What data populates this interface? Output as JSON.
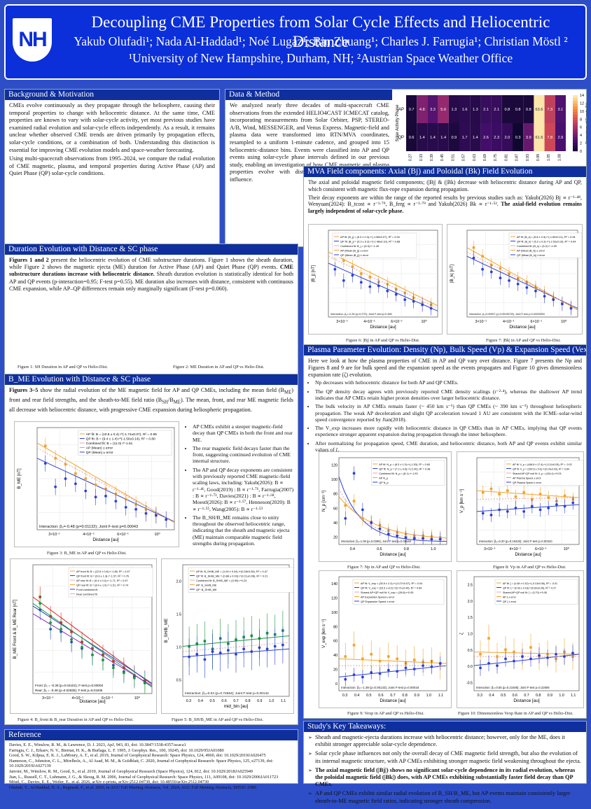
{
  "header": {
    "logo_text": "NH",
    "title": "Decoupling CME Properties from Solar Cycle Effects and Heliocentric Distance",
    "authors": "Yakub Olufadi¹; Nada Al-Haddad¹; Noé Lugaz¹; Bin Zhuang¹; Charles J. Farrugia¹; Christian Möstl ²",
    "affiliations": "¹University of New Hampshire, Durham, NH; ²Austrian Space Weather Office"
  },
  "background": {
    "title": "Background & Motivation",
    "p1": "CMEs evolve continuously as they propagate through the heliosphere, causing their temporal properties to change with heliocentric distance. At the same time, CME properties are known to vary with solar-cycle activity, yet most previous studies have examined radial evolution and solar-cycle effects independently. As a result, it remains unclear whether observed CME trends are driven primarily by propagation effects, solar-cycle conditions, or a combination of both. Understanding this distinction is essential for improving CME evolution models and space-weather forecasting.",
    "p2": "Using multi-spacecraft observations from 1995–2024, we compare the radial evolution of CME magnetic, plasma, and temporal properties during Active Phase (AP) and Quiet Phase (QP) solar-cycle conditions."
  },
  "method": {
    "title": "Data & Method",
    "text": "We analyzed nearly three decades of multi-spacecraft CME observations from the extended HELIO4CAST ICMECAT catalog, incorporating measurements from Solar Orbiter, PSP, STEREO-A/B, Wind, MESSENGER, and Venus Express. Magnetic-field and plasma data were transformed into RTN/MVA coordinates, resampled to a uniform 1-minute cadence, and grouped into 15 heliocentric-distance bins. Events were classified into AP and QP events using solar-cycle phase intervals defined in our previous study, enabling an investigation of how CME magnetic and plasma properties evolve with distance under different solar-cycle influence."
  },
  "heatmap": {
    "ylabel": "Solar Activity Phase",
    "xlabel": "Radial Distance [AU]",
    "cbar_label": "Percentage of Events (%)",
    "rows": [
      "AP",
      "QP"
    ],
    "cols": [
      "0.27",
      "0.33",
      "0.39",
      "0.45",
      "0.51",
      "0.57",
      "0.63",
      "0.69",
      "0.75",
      "0.81",
      "0.87",
      "0.93",
      "0.99",
      "1.05",
      "1.08"
    ],
    "ap": [
      "0.7",
      "4.8",
      "3.3",
      "5.6",
      "1.3",
      "1.6",
      "1.3",
      "2.1",
      "2.1",
      "0.8",
      "0.8",
      "0.8",
      "63.6",
      "7.3",
      "3.1"
    ],
    "qp": [
      "0.6",
      "1.4",
      "1.4",
      "1.4",
      "0.9",
      "1.7",
      "1.4",
      "2.6",
      "2.3",
      "2.0",
      "0.3",
      "3.9",
      "61.6",
      "7.8",
      "2.9"
    ],
    "cbar_ticks": [
      "14",
      "12",
      "10",
      "8",
      "6",
      "4",
      "2",
      "0"
    ]
  },
  "duration": {
    "title": "Duration Evolution with Distance & SC phase",
    "lead": "Figures 1 and 2",
    "t1": " present the heliocentric evolution of CME substructure durations. Figure 1 shows the sheath duration, while Figure 2 shows the magnetic ejecta (ME) duration for Active Phase (AP) and Quiet Phase (QP) events. ",
    "bold": "CME substructure durations increase with heliocentric distance.",
    "t2": " Sheath duration evolution is statistically identical for both AP and QP events (p-interaction=0.95; F-test p=0.55). ME duration also increases with distance, consistent with continuous CME expansion, while AP–QP differences remain only marginally significant (F-test p=0.060).",
    "cap1": "Figure 1: SH Duration in AP and QP vs Helio-Dist.",
    "cap2": "Figure 2: ME Duration in AP and QP vs Helio-Dist."
  },
  "bme": {
    "title": "B_ME Evolution with Distance & SC phase",
    "lead": "Figures 3–5",
    "t1": " show the radial evolution of the ME magnetic field for AP and QP CMEs, including the mean field (B",
    "sub1": "ME",
    "t2": ") front and rear field strengths, and the sheath-to-ME field ratio (B",
    "sub2": "SH",
    "t3": "/B",
    "sub3": "ME",
    "t4": "). The mean, front, and rear ME magnetic fields all decrease with heliocentric distance, with progressive CME expansion during heliospheric propagation.",
    "bullets": [
      "AP CMEs exhibit a steeper magnetic-field decay than QP CMEs in both the front and rear ME.",
      "The rear magnetic field decays faster than the front, suggesting continued evolution of CME internal structure.",
      "The AP and QP decay exponents are consistent with previously reported CME magnetic-field scaling laws, including: Yakub(2026): B ∝ r⁻¹·⁴⁶, Good(2019) : B ∝ r⁻¹·⁷⁶, Farrugia(2007) : B ∝ r⁻¹·⁷³, Davies(2021) : B ∝ r⁻¹·⁶⁸, Moestl(2026): B ∝ r⁻¹·⁵⁷, Henneson(2020): B ∝ r⁻¹·⁵⁵, Wang(2005): B ∝ r⁻¹·⁵³",
      "The B_SH/B_ME remains close to unity throughout the observed heliocentric range, indicating that the sheath and magnetic ejecta (ME) maintain comparable magnetic field strengths during propagation."
    ],
    "cap3": "Figure 3: B_ME in AP and QP vs Helio-Dist.",
    "cap4": "Figure 4: B_front & B_rear Duration in AP and QP vs Helio-Dist.",
    "cap5": "Figure 5: B_SH/B_ME in AP and QP vs Helio-Dist."
  },
  "mva": {
    "title": "MVA Field components: Axial (Bj) and Poloidal (Bk) Field Evolution",
    "t1": "The axial and poloidal magnetic field components; (|Bj| & (|Bk) decrease with heliocentric distance during AP and QP, which consistent with magnetic flux-rope expansion during propagation.",
    "t2": "Their decay exponents are within the range of the reported results by previous studies such as: Yakub(2026) Bj ∝ r⁻¹·⁴⁸, Wenyuan(2024): B_tcost ∝ r⁻¹·⁷⁹, B_ferg ∝ r⁻¹·⁷⁹ and Yakub(2026) Bk ∝ r⁻¹·⁵². ",
    "bold": "The axial-field evolution remains largely independent of solar-cycle phase.",
    "cap6": "Figure 6: |Bj| in AP and QP vs Helio-Dist.",
    "cap7": "Figure 7: |Bk| in AP and QP vs Helio-Dist."
  },
  "plasma": {
    "title": "Plasma Parameter Evolution: Density (Np), Bulk Speed (Vp) & Expansion Speed (Vexp)",
    "intro": "Here we look at how the plasma properties of CME in AP and QP vary over distance. Figure 7 presents the Np and Figures 8 and 9 are for bulk speed and the expansion speed as the events propagates and Figure 10 gives dimensionless expansion rate (ζ) evolution.",
    "bullets": [
      "Np decreases with heliocentric distance for both AP and QP CMEs.",
      "The QP density decay agrees with previously reported CME density scalings (r⁻²·⁴), whereas the shallower AP trend indicates that AP CMEs retain higher proton densities over larger heliocentric distance.",
      "The bulk velocity in AP CMEs remain faster (~ 450 km s⁻¹) than QP CMEs (~ 390 km s⁻¹) throughout heliospheric propagation. The weak AP deceleration and slight QP acceleration toward 1 AU are consistent with the ICME–solar-wind speed convergence reported by Jian(2018).",
      "The V_exp increases more rapidly with heliocentric distance in QP CMEs than in AP CMEs, implying that QP events experience stronger apparent expansion during propagation through the inner heliosphere.",
      "After normalizing for propagation speed, CME duration, and heliocentric distance, both AP and QP events exhibit similar values of ζ."
    ],
    "cap7": "Figure 7: Np in AP and QP vs Helio-Dist.",
    "cap8": "Figure 8: Vp in AP and QP vs Helio-Dist.",
    "cap9": "Figure 9: Vexp in AP and QP vs Helio-Dist.",
    "cap10": "Figure 10: Dimensionless Vexp Rate in AP and QP vs Helio-Dist."
  },
  "refs": {
    "title": "Reference",
    "items": [
      "Davies, E. E., Winslow, R. M., & Lawrence, D. J. 2023, ApJ, 943, 83, doi: 10.3847/1538-4357/acaca1",
      "Farrugia, C. J., Erkaev, N. V., Biernat, H. K., & Burlaga, L. F. 1995, J. Geophys. Res., 100, 19245, doi: 10.1029/95JA01080",
      "Good, S. W., Kilpua, E. K. J., LaMoury, A. T., et al. 2019, Journal of Geophysical Research: Space Physics, 124, 4960, doi: 10.1029/2019JA026475",
      "Hanneson, C., Johnston, C. L., Mirelholz, A., Al Asad, M. M., & Goldblatt, C. 2020, Journal of Geophysical Research: Space Physics, 125, e27139, doi: 10.1029/2019JA027139",
      "Janvier, M., Winslow, R. M., Good, S., et al. 2019, Journal of Geophysical Research (Space Physics), 124, 812, doi: 10.1029/2018JA025949",
      "Jian, L., Russell, C. T., Luhmann, J. G., & Skoug, R. M. 2006, Journal of Geophysical Research: Space Physics, 111, A09108, doi: 10.1029/2006JA011723",
      "Möstl, C., Davies, E. E., Weiler, E., et al. 2026, arXiv e-prints, arXiv:2512.04730, doi: 10.48550/arXiv.2512.04730",
      "Olufadi, Y., Al-Haddad, N. A., Regnault, F., et al. 2026, in AGU Fall Meeting Abstracts, Vol. 2024, AGU Fall Meeting Abstracts, SH53C-2989",
      "Winslow, R. M., Lugaz, N., Philpott, L. C., et al. 2015, Journal of Geophysical Research (Space Physics), 120, 6101, doi: 10.1002/2015JA021200"
    ]
  },
  "takeaways": {
    "title": "Study's Key Takeaways:",
    "items": [
      "Sheath and magnetic-ejecta durations increase with heliocentric distance; however, only for the ME, does it exhibit stronger appreciable solar-cycle dependence.",
      "Solar cycle phase influences not only the overall decay of CME magnetic field strength, but also the evolution of its internal magnetic structure, with AP CMEs exhibiting stronger magnetic field weakening throughout the ejecta.",
      "The axial magnetic field (|Bj|) shows no significant solar-cycle dependence in its radial evolution, whereas the poloidal magnetic field (|Bk|) does, with AP CMEs exhibiting substantially faster field decay than QP CMEs.",
      "AP and QP CMEs exhibit similar radial evolution of B_SH/B_ME, but AP events maintain consistently larger sheath-to-ME magnetic field ratios, indicating stronger sheath compression."
    ]
  },
  "figs": {
    "f1": {
      "ylabel": "SH Duration [hour]",
      "xlabel": "Distance [au]",
      "xt": [
        "0.4",
        "0.6",
        "0.8",
        "1.0"
      ],
      "yt": [
        "14",
        "12",
        "10",
        "8",
        "6",
        "4",
        "2"
      ],
      "legend": [
        "AP fit: D = (8.8 ± 0.5) r^(0.62±0.20), R² = 0.88",
        "QP fit: D = (4.9 ± 0.8) r^(0.26±0.34), R² = 0.99",
        "Combined fit: D = (4.7) r^0.49",
        "AP SH Duration",
        "QP SH Duration"
      ],
      "inter": "Interaction: β₃=0.02 (p=0.95003); Joint F-test p=0.54677"
    },
    "f2": {
      "ylabel": "ME Duration [hour]",
      "xlabel": "Distance [au]",
      "xt": [
        "0.4",
        "0.6",
        "0.8",
        "1.0"
      ],
      "yt": [
        "40",
        "30",
        "20",
        "10"
      ],
      "legend": [
        "AP fit: D = (20.5 ± 1.7) r^(0.65±0.18), R² = 0.99",
        "QP fit: D = (18.1 ± 0.7) r^(0.46±0.08), R² = 0.95",
        "Combined fit: D = (18.6) r^0.51",
        "AP ME Duration",
        "QP ME Duration"
      ],
      "inter": "Interaction: β₃=0.36 (p=0.06826); Joint F-test p=0.06001"
    },
    "f3": {
      "ylabel": "B_ME [nT]",
      "xlabel": "Distance [au]",
      "xt": [
        "3×10⁻¹",
        "4×10⁻¹",
        "6×10⁻¹",
        "10⁰"
      ],
      "legend": [
        "AP fit: B = (10.8 ± 0.4) r^(-1.74±0.07), R² = 0.98",
        "QP fit: B = (9.4 ± 1.4) r^(-1.50±0.14), R² = 0.80",
        "Combined fit: B = (11.0) r^-1.61",
        "AP (Mean) ± error",
        "QP (Mean) ± error"
      ],
      "inter": "Interaction: β₃=-0.48 (p=0.01132); Joint F-test p=0.00043"
    },
    "f4": {
      "ylabel": "B_ME Front & B_ME Rear [nT]",
      "xlabel": "Distance [au]",
      "xt": [
        "3×10⁻¹",
        "4×10⁻¹",
        "6×10⁻¹",
        "10⁰"
      ],
      "legend": [
        "AP front fit: B = (12.6 ± 0.6) r^-1.86, R² = 0.97",
        "QP front fit: B = (9.6 ± 1.3) r^-1.57, R² = 0.76",
        "AP rear fit: B = (9.4 ± 0.4) r^-1.71, R² = 0.97",
        "QP rear fit: B = (8.4 ± 1.0) r^-1.51, R² = 0.74",
        "Front combined fit",
        "Rear combined fit"
      ],
      "inter1": "Front: β₃ = -0.39 (p=0.04101); F-test p=0.00003",
      "inter2": "Rear: β₃ = -0.48 (p=0.02835); F-test p=0.01835"
    },
    "f5": {
      "ylabel": "B_SH/B_ME",
      "xlabel": "mid_bin [au]",
      "xt": [
        "0.3",
        "0.4",
        "0.5",
        "0.6",
        "0.7",
        "0.8",
        "0.9",
        "1.0",
        "1.1"
      ],
      "yt": [
        "2.0",
        "1.5",
        "1.0",
        "0.5"
      ],
      "legend": [
        "AP fit: B_SH/B_ME = (1.09 ± 0.04) r^(0.28±0.05), R² = 0.47",
        "QP fit: B_SH/B_ME = (0.88 ± 0.03) r^(0.21±0.06), R² = 0.21",
        "Combined fit: B_SH/B_ME = (0.99) r^0.23",
        "AP: B_SH/B_ME",
        "QP: B_SH/B_ME"
      ],
      "inter": "Interaction: β₃=0.04 (p=0.74564); Joint F-test p=0.00142"
    },
    "f6": {
      "ylabel": "|B_j| [nT]",
      "xlabel": "Distance [au]",
      "xt": [
        "3×10⁻¹",
        "4×10⁻¹",
        "6×10⁻¹",
        "10⁰"
      ],
      "legend": [
        "AP fit: |B_j| = (6.3 ± 0.3) r^(-1.56±0.07), R² = 0.94",
        "QP fit: |B_j| = (5.2 ± 0.3) r^(-1.48±0.10), R² = 0.88",
        "Combined fit: B_j = (6.3) r^-1.49",
        "AP (Mean |B_j|) ± error",
        "QP (Mean |B_j|) ± error"
      ],
      "inter": "Interaction: β₃=-0.28 (p=0.270); Joint F-test p=0.486"
    },
    "f7": {
      "ylabel": "|B_k| [nT]",
      "xlabel": "Distance [au]",
      "xt": [
        "3×10⁻¹",
        "4×10⁻¹",
        "6×10⁻¹",
        "10⁰"
      ],
      "legend": [
        "AP fit: |B_k| = (5.8 ± 0.3) r^(-1.69±0.11), R² = 0.94",
        "QP fit: |B_k| = (5.2 ± 0.3) r^(-1.52±0.10), R² = 0.94",
        "Combined fit: |B_k| = (5.2) r^-1.59",
        "AP (Mean |B_k|) ± error",
        "QP (Mean |B_k|) ± error"
      ],
      "inter": "Interaction: β₃=0.50957 (p=0.00196739); Joint F-test p=0.00000093"
    },
    "f8": {
      "ylabel": "N_p [cm⁻³]",
      "xlabel": "Distance [au]",
      "xt": [
        "0.4",
        "0.6",
        "0.8",
        "1.0"
      ],
      "yt": [
        "120",
        "100",
        "80",
        "60",
        "40",
        "20"
      ],
      "legend": [
        "AP fit: N_p = (8.3 ± 1.3) r^(-1.53), R² = 0.60",
        "QP fit: N_p = (7.2 ± 0.6) r^(-2.40), R² = 0.98",
        "Combined fit: N_p = (8.1) r^-1.93",
        "AP N_p",
        "QP N_p"
      ],
      "inter": "Interaction: β₃=1.08 (p=0.0305); Joint F-test p=0.05846"
    },
    "f9": {
      "ylabel": "V_p [km s⁻¹]",
      "xlabel": "Distance [au]",
      "xt": [
        "3×10⁻¹",
        "4×10⁻¹",
        "6×10⁻¹",
        "10⁰"
      ],
      "legend": [
        "AP fit: V_p = (448.8 ± 17.4) r^(-0.11±0.05), R² = -0.02",
        "QP fit: V_p = (392.6 ± 5.6) r^(0.10±0.03), R² = 0.84",
        "Shared AP+QP null fit: V_p = (434.4) r^0.03",
        "AP Plasma Speed ± error",
        "QP Plasma Speed ± error"
      ],
      "inter": "Interaction: β₃=0.20 (p=0.19433); Joint F-test p=0.00310"
    },
    "f10": {
      "ylabel": "V_exp [km s⁻¹]",
      "xlabel": "Distance [au]",
      "xt": [
        "0.3",
        "0.4",
        "0.5",
        "0.6",
        "0.7",
        "0.8",
        "0.9",
        "1.0",
        "1.1"
      ],
      "yt": [
        "140",
        "120",
        "100",
        "80",
        "60",
        "40",
        "20",
        "0"
      ],
      "legend": [
        "AP fit: V_exp = (30.5 ± 2.4) r^(-0.27±0.07), R² = 0.04",
        "QP fit: V_exp = (23.3 ± 8.2) r^(0.71±0.44), R² = 0.69",
        "Shared AP+QP null fit: V_exp = (28.8) r^0.05",
        "AP Expansion Speed ± error",
        "QP Expansion Speed ± error"
      ],
      "inter": "Interaction: β₃=-1.39 (p=0.00133); Joint F-test p=0.00018"
    },
    "f11": {
      "ylabel": "ζ",
      "xlabel": "Distance [au]",
      "xt": [
        "0.3",
        "0.4",
        "0.5",
        "0.6",
        "0.7",
        "0.8",
        "0.9",
        "1.0",
        "1.1"
      ],
      "yt": [
        "2.5",
        "2.0",
        "1.5",
        "1.0",
        "0.5",
        "0.0",
        "-0.5"
      ],
      "legend": [
        "AP fit: ζ = (0.48 ± 0.10) r^(-0.13±0.06), R² = -0.01",
        "QP fit: ζ = (0.43 ± 0.18) r^(0.62±0.26), R² = 0.27",
        "Shared AP+QP null fit: ζ = (0.70) r^0.08",
        "AP ζ ± error",
        "QP ζ ± error"
      ],
      "inter": "Interaction: β₃=0.55 (p=0.21936); Joint F-test p=0.22606"
    }
  },
  "colors": {
    "ap": "#f2a32b",
    "qp": "#2b3fd6",
    "header": "#0b2fd8",
    "section": "#0f2f9e",
    "combined": "#e6a8a8"
  }
}
